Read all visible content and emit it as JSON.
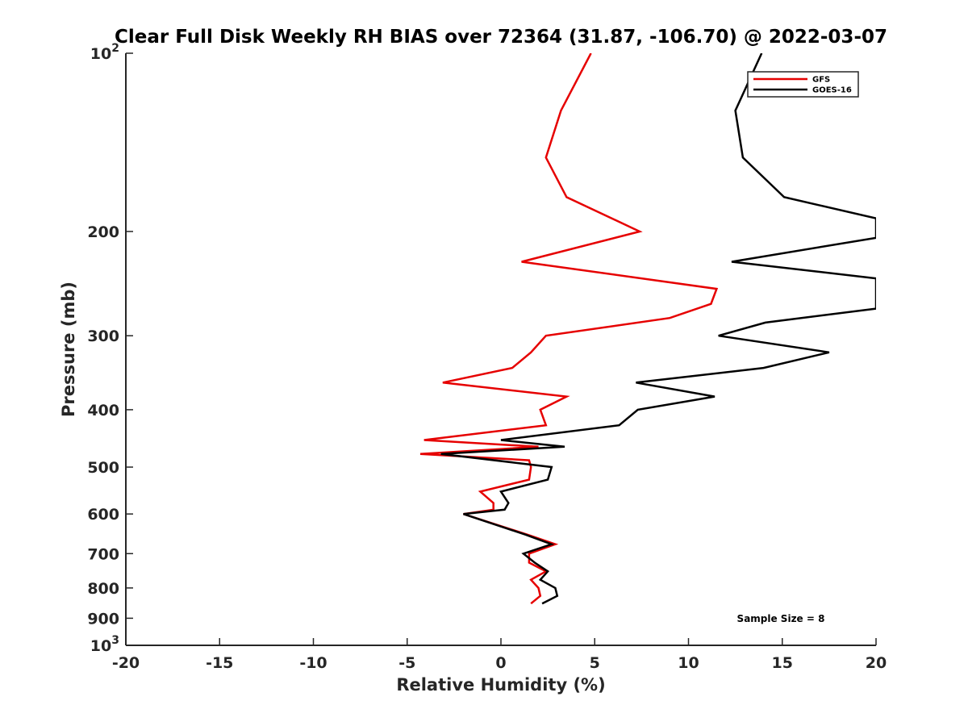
{
  "chart_data": {
    "type": "line",
    "title": "Clear Full Disk Weekly RH BIAS over 72364 (31.87, -106.70) @ 2022-03-07",
    "xlabel": "Relative Humidity (%)",
    "ylabel": "Pressure (mb)",
    "xlim": [
      -20,
      20
    ],
    "ylim": [
      100,
      1000
    ],
    "yscale": "log",
    "y_reversed": true,
    "grid": false,
    "legend_position": "top-right",
    "x_ticks": [
      -20,
      -15,
      -10,
      -5,
      0,
      5,
      10,
      15,
      20
    ],
    "x_tick_labels": [
      "-20",
      "-15",
      "-10",
      "-5",
      "0",
      "5",
      "10",
      "15",
      "20"
    ],
    "y_ticks": [
      100,
      200,
      300,
      400,
      500,
      600,
      700,
      800,
      900,
      1000
    ],
    "y_tick_labels": [
      {
        "base": "10",
        "exp": "2"
      },
      {
        "base": "200",
        "exp": ""
      },
      {
        "base": "300",
        "exp": ""
      },
      {
        "base": "400",
        "exp": ""
      },
      {
        "base": "500",
        "exp": ""
      },
      {
        "base": "600",
        "exp": ""
      },
      {
        "base": "700",
        "exp": ""
      },
      {
        "base": "800",
        "exp": ""
      },
      {
        "base": "900",
        "exp": ""
      },
      {
        "base": "10",
        "exp": "3"
      }
    ],
    "annotation": "Sample Size = 8",
    "series": [
      {
        "name": "GFS",
        "color": "#e60000",
        "points": [
          [
            4.8,
            100
          ],
          [
            3.2,
            125
          ],
          [
            2.4,
            150
          ],
          [
            3.5,
            175
          ],
          [
            7.4,
            200
          ],
          [
            1.1,
            225
          ],
          [
            11.5,
            250
          ],
          [
            11.2,
            265
          ],
          [
            9.0,
            280
          ],
          [
            2.4,
            300
          ],
          [
            1.6,
            320
          ],
          [
            0.6,
            340
          ],
          [
            -3.1,
            360
          ],
          [
            3.5,
            380
          ],
          [
            2.1,
            400
          ],
          [
            2.4,
            425
          ],
          [
            -4.1,
            450
          ],
          [
            2.0,
            462
          ],
          [
            -4.3,
            475
          ],
          [
            1.5,
            487
          ],
          [
            1.6,
            500
          ],
          [
            1.5,
            525
          ],
          [
            -1.1,
            550
          ],
          [
            -0.4,
            575
          ],
          [
            -0.4,
            590
          ],
          [
            -2.0,
            600
          ],
          [
            1.4,
            650
          ],
          [
            2.9,
            675
          ],
          [
            1.5,
            700
          ],
          [
            1.5,
            725
          ],
          [
            2.4,
            750
          ],
          [
            1.6,
            775
          ],
          [
            2.0,
            800
          ],
          [
            2.1,
            825
          ],
          [
            1.6,
            850
          ]
        ]
      },
      {
        "name": "GOES-16",
        "color": "#000000",
        "points": [
          [
            13.9,
            100
          ],
          [
            12.5,
            125
          ],
          [
            12.9,
            150
          ],
          [
            15.1,
            175
          ],
          [
            20.0,
            190
          ],
          [
            20.0,
            205
          ],
          [
            12.3,
            225
          ],
          [
            20.0,
            240
          ],
          [
            20.0,
            270
          ],
          [
            14.1,
            285
          ],
          [
            11.6,
            300
          ],
          [
            17.5,
            320
          ],
          [
            14.0,
            340
          ],
          [
            7.2,
            360
          ],
          [
            11.4,
            380
          ],
          [
            7.3,
            400
          ],
          [
            6.3,
            425
          ],
          [
            0.0,
            450
          ],
          [
            3.4,
            462
          ],
          [
            -3.2,
            475
          ],
          [
            2.7,
            500
          ],
          [
            2.5,
            525
          ],
          [
            0.0,
            550
          ],
          [
            0.4,
            575
          ],
          [
            0.2,
            590
          ],
          [
            -2.0,
            600
          ],
          [
            1.3,
            650
          ],
          [
            2.7,
            675
          ],
          [
            1.2,
            700
          ],
          [
            1.8,
            725
          ],
          [
            2.5,
            750
          ],
          [
            2.1,
            775
          ],
          [
            2.9,
            800
          ],
          [
            3.0,
            825
          ],
          [
            2.2,
            850
          ]
        ]
      }
    ]
  }
}
